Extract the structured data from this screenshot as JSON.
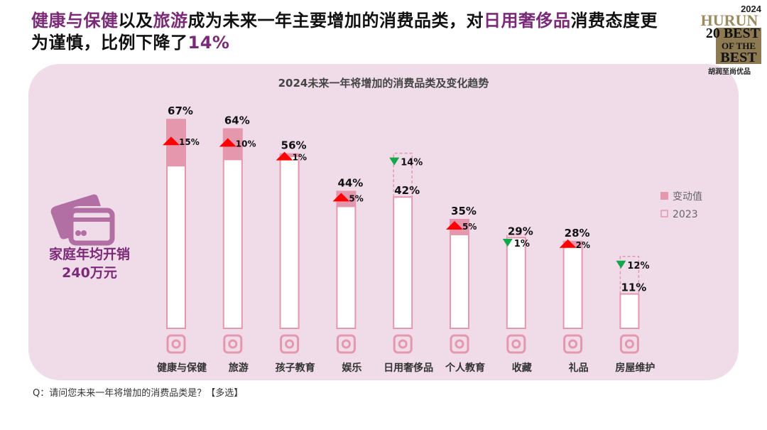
{
  "headline": {
    "parts": [
      {
        "text": "健康与保健",
        "highlight": true
      },
      {
        "text": "以及",
        "highlight": false
      },
      {
        "text": "旅游",
        "highlight": true
      },
      {
        "text": "成为未来一年主要增加的消费品类，对",
        "highlight": false
      },
      {
        "text": "日用奢侈品",
        "highlight": true
      },
      {
        "text": "消费态度更为谨慎，比例下降了",
        "highlight": false
      },
      {
        "text": "14%",
        "highlight": true
      }
    ]
  },
  "logo": {
    "year": "2024",
    "brand": "HURUN",
    "line1": "20 BEST",
    "line2": "OF THE",
    "line3": "BEST",
    "cn": "胡润至尚优品"
  },
  "side_note": {
    "line1": "家庭年均开销",
    "line2": "240万元",
    "icon": "credit-card-icon"
  },
  "question": "Q：请问您未来一年将增加的消费品类是？【多选】",
  "colors": {
    "accent": "#7b2a78",
    "bar": "#e597ae",
    "up": "#ff0000",
    "down": "#11a84a",
    "panel": "#efdce8"
  },
  "chart_data": {
    "type": "bar",
    "title": "2024未来一年将增加的消费品类及变化趋势",
    "legend": [
      {
        "label": "变动值",
        "style": "filled"
      },
      {
        "label": "2023",
        "style": "outline"
      }
    ],
    "legend_position": "right",
    "ylim": [
      0,
      70
    ],
    "grid": false,
    "categories": [
      "健康与保健",
      "旅游",
      "孩子教育",
      "娱乐",
      "日用奢侈品",
      "个人教育",
      "收藏",
      "礼品",
      "房屋维护"
    ],
    "icons": [
      "health-cart-icon",
      "beach-chair-icon",
      "reading-child-icon",
      "music-note-icon",
      "watch-icon",
      "glasses-book-icon",
      "painting-easel-icon",
      "gift-icon",
      "house-icon"
    ],
    "values_2024": [
      67,
      64,
      56,
      44,
      42,
      35,
      29,
      28,
      11
    ],
    "values_2023": [
      52,
      54,
      55,
      39,
      56,
      30,
      30,
      26,
      23
    ],
    "change": [
      15,
      10,
      1,
      5,
      14,
      5,
      1,
      2,
      12
    ],
    "direction": [
      "up",
      "up",
      "up",
      "up",
      "down",
      "up",
      "down",
      "up",
      "down"
    ],
    "value_labels": [
      "67%",
      "64%",
      "56%",
      "44%",
      "42%",
      "35%",
      "29%",
      "28%",
      "11%"
    ],
    "change_labels": [
      "15%",
      "10%",
      "1%",
      "5%",
      "14%",
      "5%",
      "1%",
      "2%",
      "12%"
    ]
  }
}
